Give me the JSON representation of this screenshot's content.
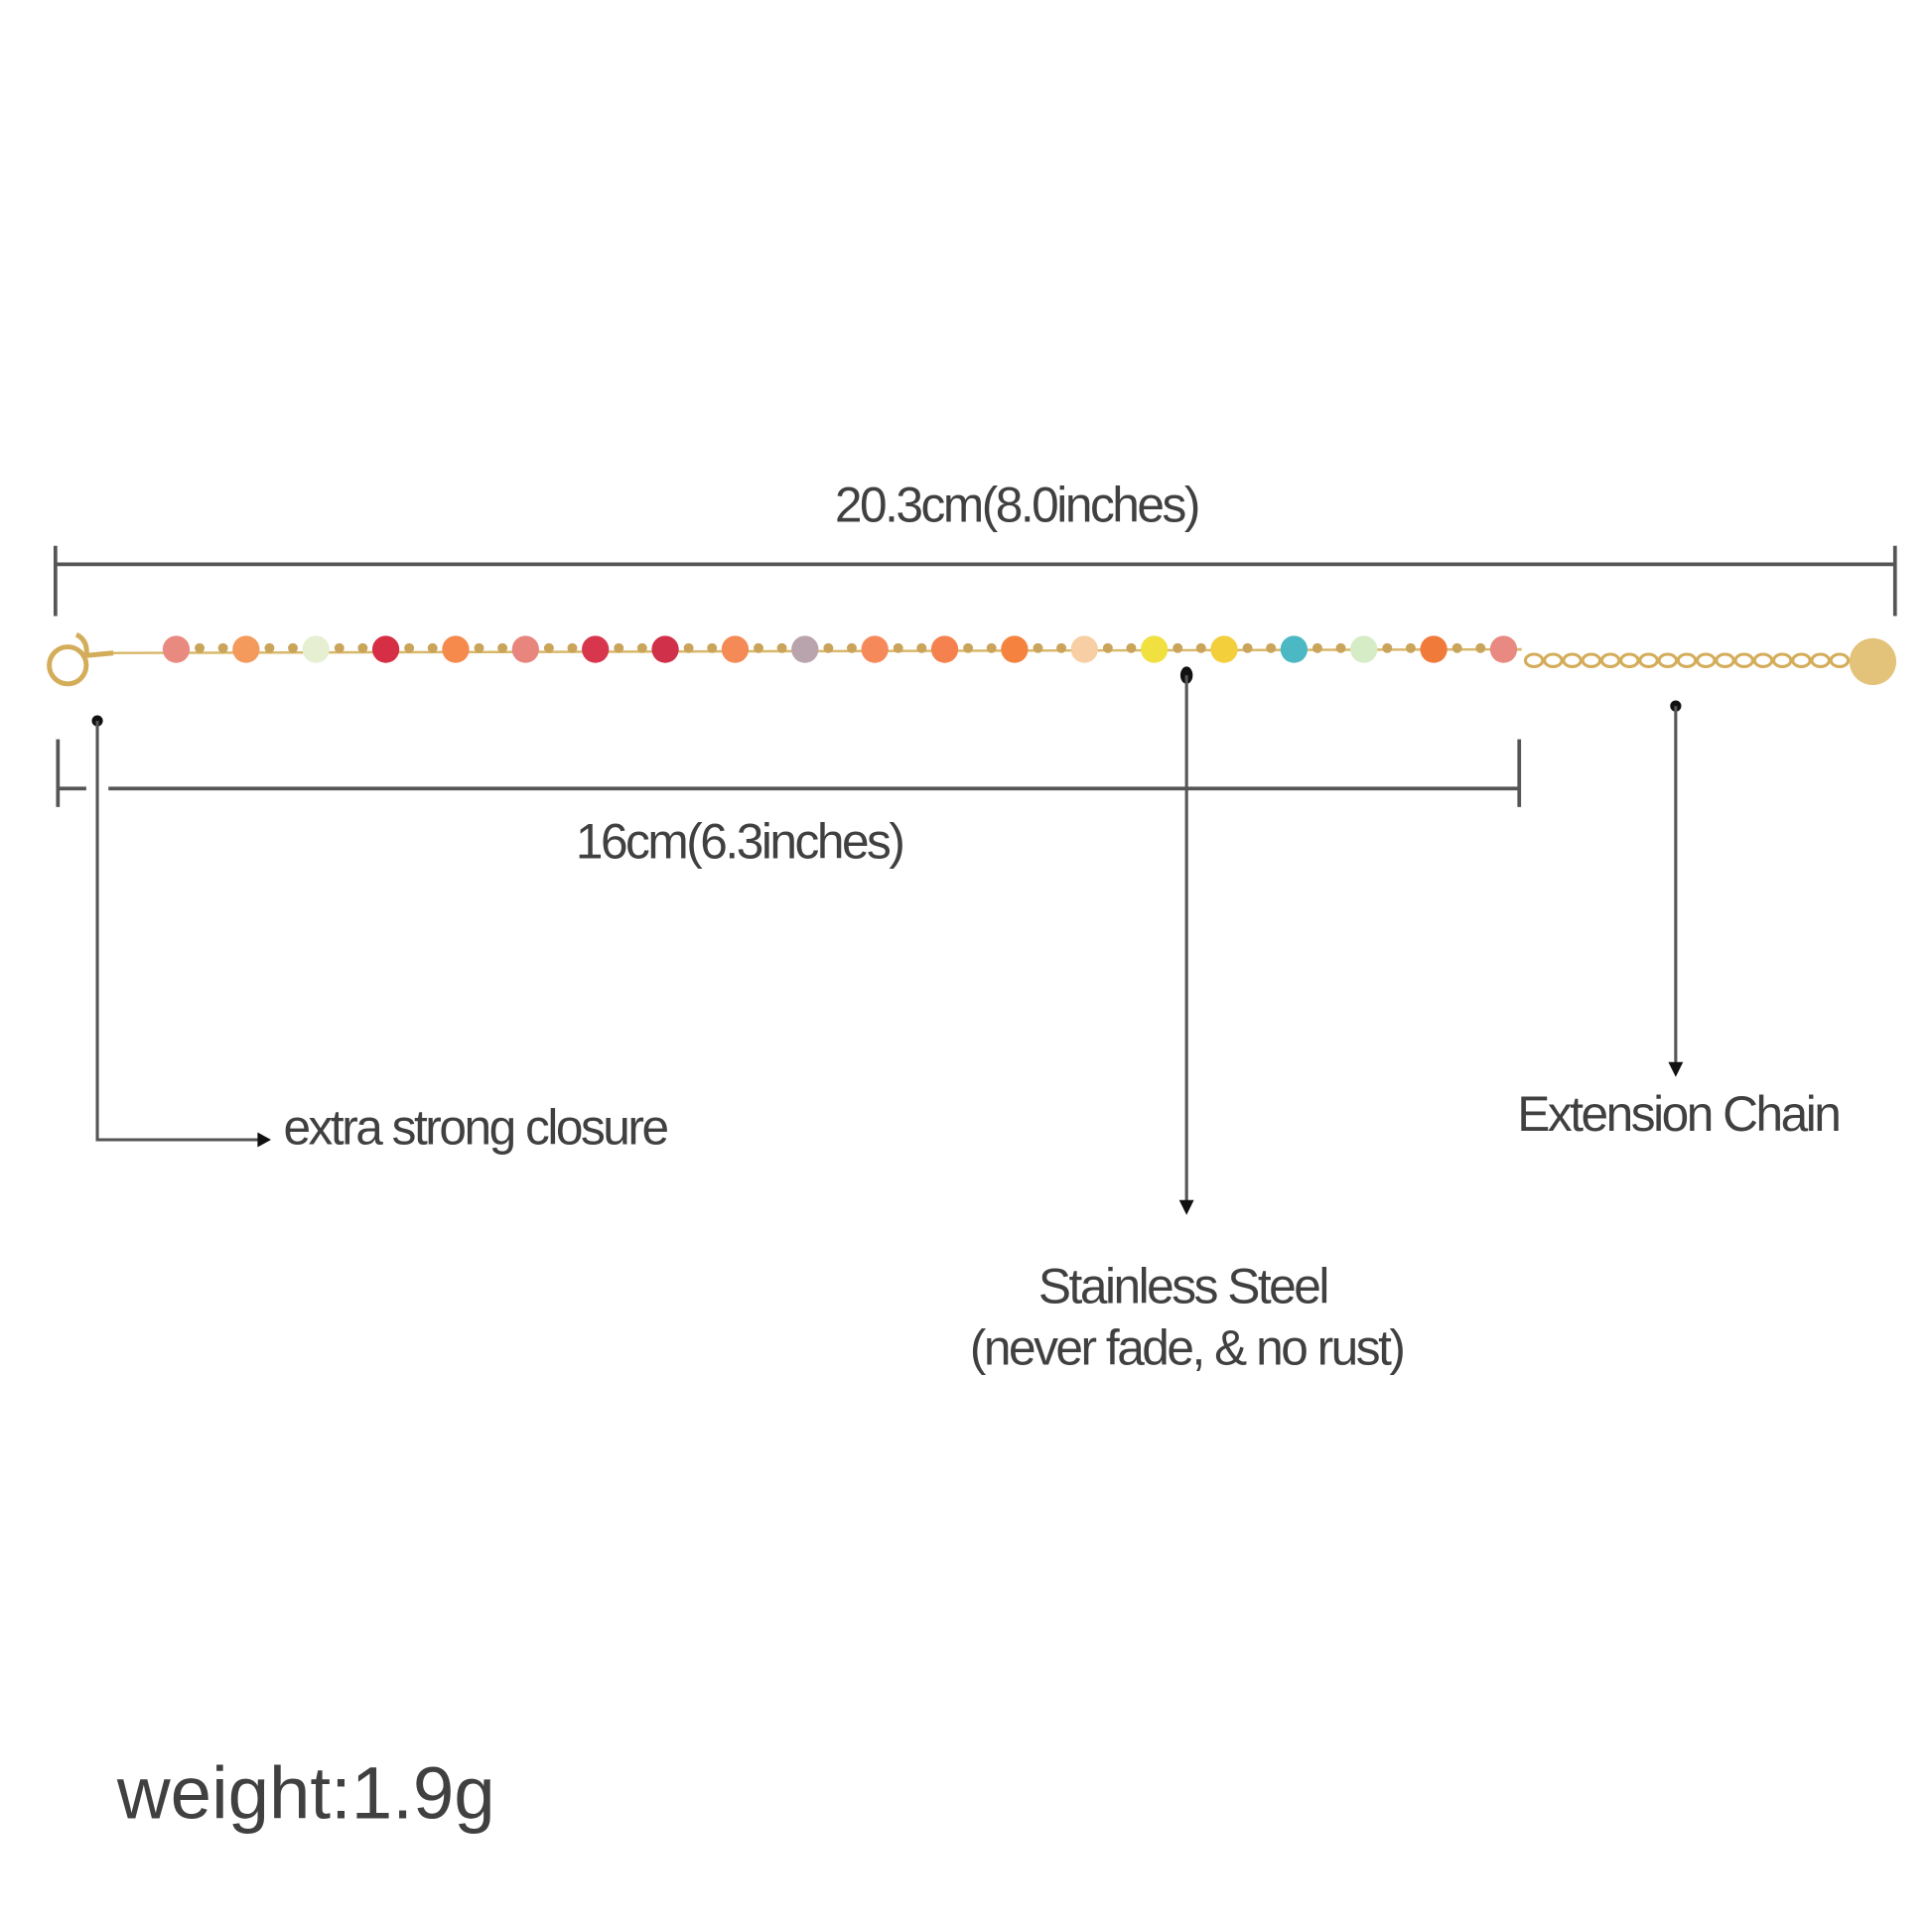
{
  "measures": {
    "total_length": "20.3cm(8.0inches)",
    "main_length": "16cm(6.3inches)"
  },
  "callouts": {
    "closure": "extra strong closure",
    "material": "Stainless Steel",
    "material_note": "(never fade, & no rust)",
    "extension": "Extension Chain"
  },
  "weight": "weight:1.9g"
}
